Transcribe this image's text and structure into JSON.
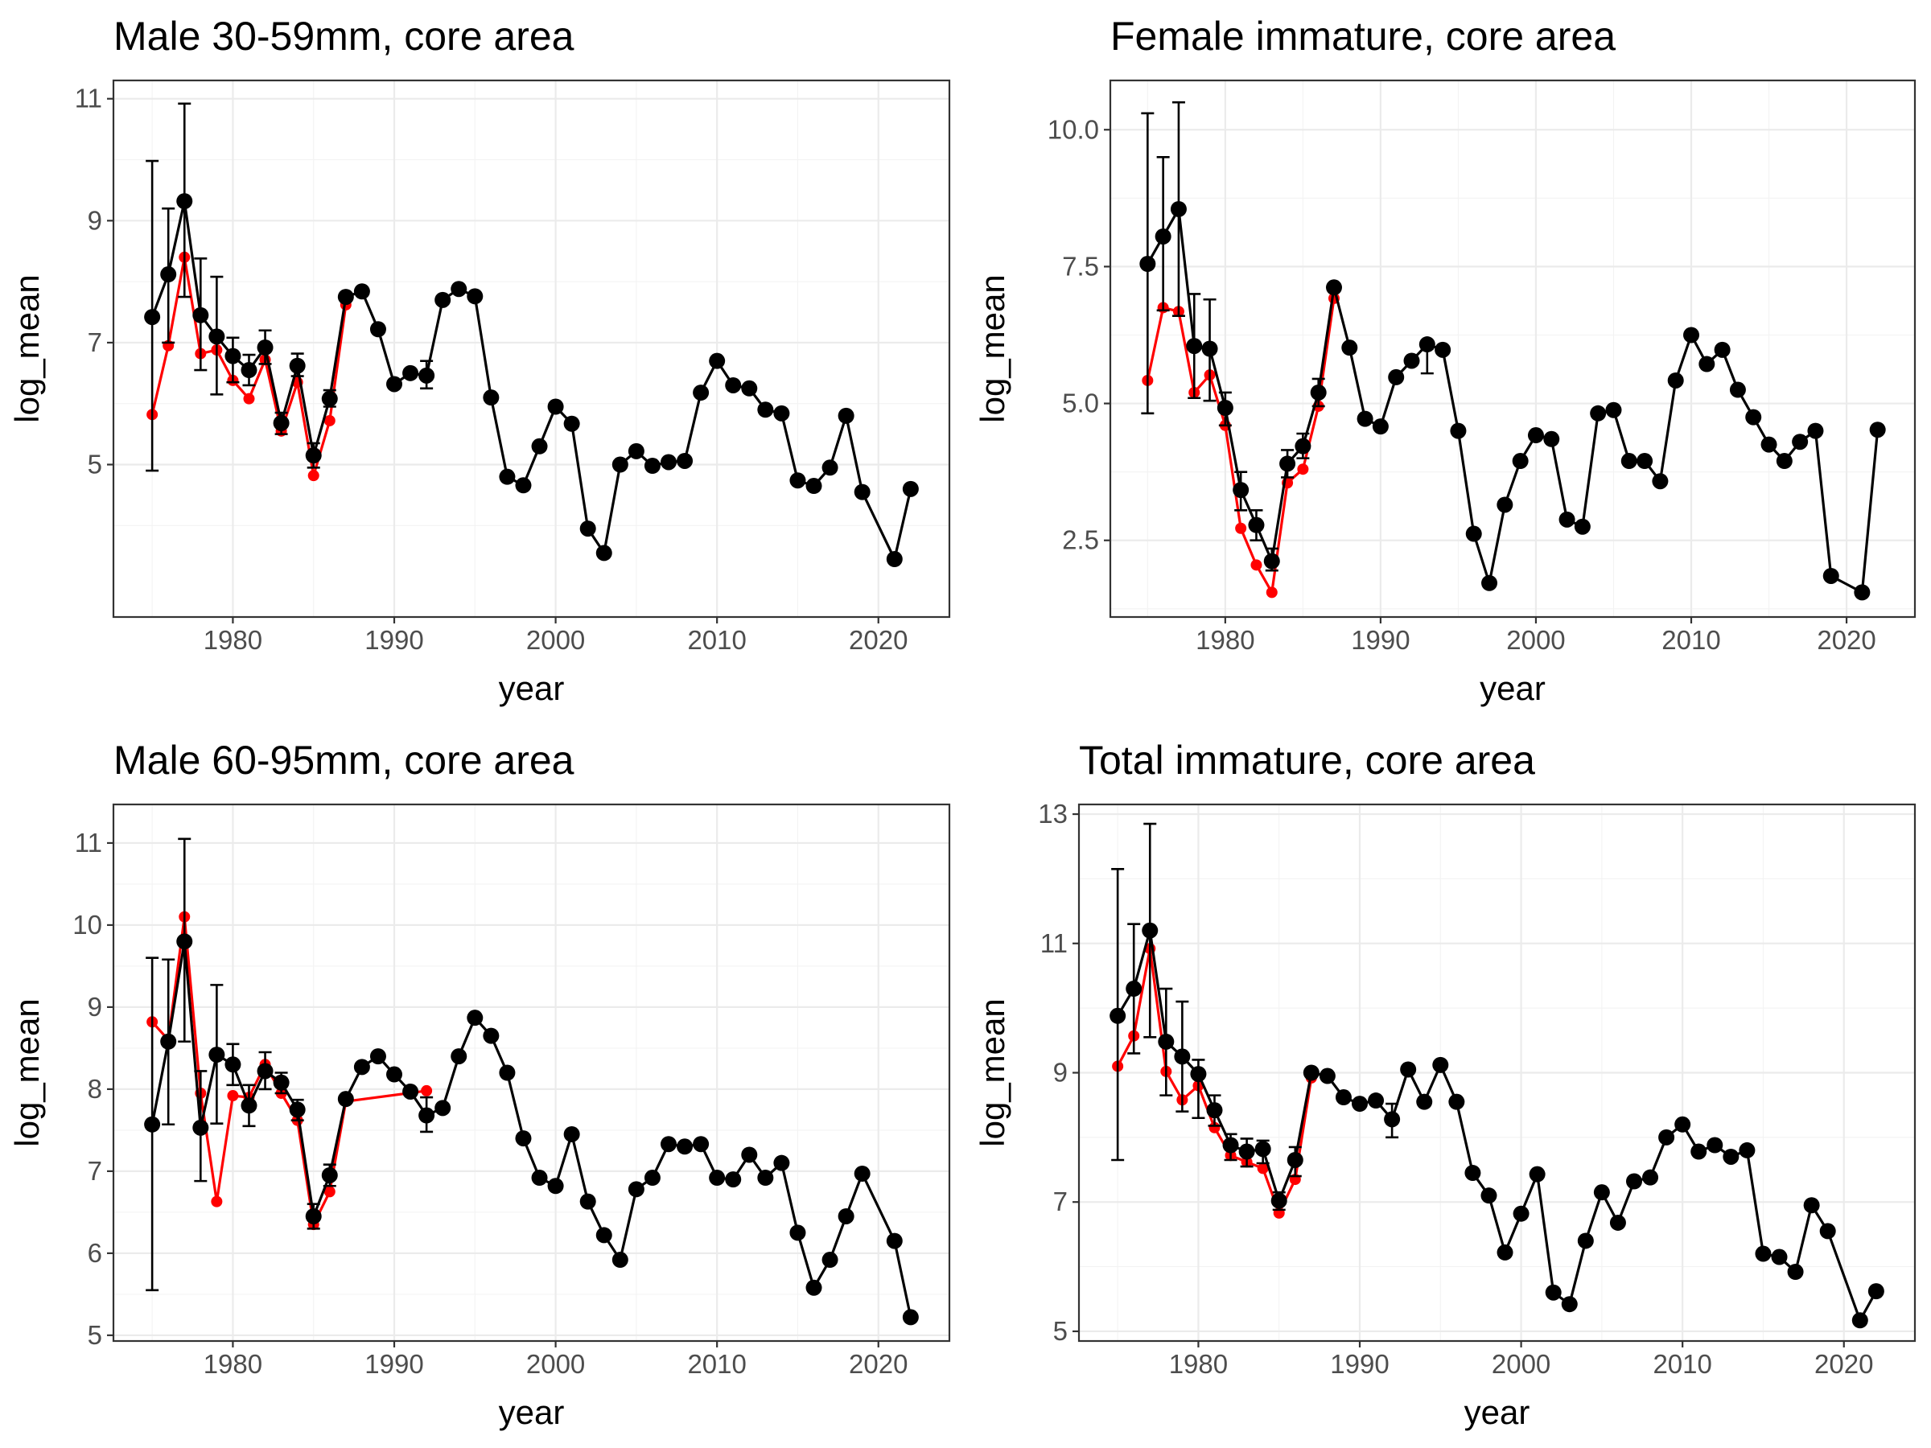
{
  "chart_data": [
    {
      "type": "line",
      "title": "Male 30-59mm, core area",
      "xlabel": "year",
      "ylabel": "log_mean",
      "xlim": [
        1972.6,
        2024.4
      ],
      "ylim": [
        2.5,
        11.3
      ],
      "xticks": [
        1980,
        1990,
        2000,
        2010,
        2020
      ],
      "yticks": [
        5,
        7,
        9,
        11
      ],
      "colors": {
        "observed": "#000000",
        "alternate": "#ff0000"
      },
      "series": [
        {
          "x": [
            1975,
            1976,
            1977,
            1978,
            1979,
            1980,
            1981,
            1982,
            1983,
            1984,
            1985,
            1986,
            1987,
            1988,
            1989,
            1990,
            1991,
            1992,
            1993,
            1994,
            1995,
            1996,
            1997,
            1998,
            1999,
            2000,
            2001,
            2002,
            2003,
            2004,
            2005,
            2006,
            2007,
            2008,
            2009,
            2010,
            2011,
            2012,
            2013,
            2014,
            2015,
            2016,
            2017,
            2018,
            2019,
            2021,
            2022
          ],
          "y": [
            7.42,
            8.12,
            9.32,
            7.45,
            7.1,
            6.78,
            6.55,
            6.92,
            5.68,
            6.62,
            5.15,
            6.08,
            7.75,
            7.84,
            7.22,
            6.32,
            6.5,
            6.46,
            7.7,
            7.88,
            7.76,
            6.1,
            4.8,
            4.66,
            5.3,
            5.95,
            5.67,
            3.95,
            3.55,
            5.0,
            5.22,
            4.98,
            5.04,
            5.06,
            6.18,
            6.7,
            6.3,
            6.25,
            5.9,
            5.84,
            4.74,
            4.65,
            4.95,
            5.8,
            4.55,
            3.45,
            4.6
          ],
          "error_x": [
            1975,
            1976,
            1977,
            1978,
            1979,
            1980,
            1981,
            1982,
            1983,
            1984,
            1985,
            1986,
            1992
          ],
          "error_low": [
            4.9,
            7.0,
            7.75,
            6.55,
            6.15,
            6.35,
            6.3,
            6.65,
            5.5,
            6.45,
            4.95,
            5.95,
            6.25
          ],
          "error_high": [
            9.98,
            9.2,
            10.92,
            8.38,
            8.08,
            7.08,
            6.8,
            7.2,
            5.85,
            6.82,
            5.35,
            6.22,
            6.7
          ]
        },
        {
          "x": [
            1975,
            1976,
            1977,
            1978,
            1979,
            1980,
            1981,
            1982,
            1983,
            1984,
            1985,
            1986,
            1987
          ],
          "y": [
            5.82,
            6.95,
            8.4,
            6.82,
            6.88,
            6.38,
            6.08,
            6.72,
            5.55,
            6.35,
            4.82,
            5.72,
            7.62
          ]
        }
      ]
    },
    {
      "type": "line",
      "title": "Female immature, core area",
      "xlabel": "year",
      "ylabel": "log_mean",
      "xlim": [
        1972.6,
        2024.4
      ],
      "ylim": [
        1.1,
        10.9
      ],
      "xticks": [
        1980,
        1990,
        2000,
        2010,
        2020
      ],
      "yticks": [
        2.5,
        5.0,
        7.5,
        10.0
      ],
      "colors": {
        "observed": "#000000",
        "alternate": "#ff0000"
      },
      "series": [
        {
          "x": [
            1975,
            1976,
            1977,
            1978,
            1979,
            1980,
            1981,
            1982,
            1983,
            1984,
            1985,
            1986,
            1987,
            1988,
            1989,
            1990,
            1991,
            1992,
            1993,
            1994,
            1995,
            1996,
            1997,
            1998,
            1999,
            2000,
            2001,
            2002,
            2003,
            2004,
            2005,
            2006,
            2007,
            2008,
            2009,
            2010,
            2011,
            2012,
            2013,
            2014,
            2015,
            2016,
            2017,
            2018,
            2019,
            2021,
            2022
          ],
          "y": [
            7.55,
            8.05,
            8.55,
            6.05,
            6.0,
            4.92,
            3.42,
            2.78,
            2.12,
            3.9,
            4.22,
            5.2,
            7.12,
            6.02,
            4.72,
            4.58,
            5.48,
            5.78,
            6.08,
            5.98,
            4.5,
            2.62,
            1.72,
            3.15,
            3.95,
            4.42,
            4.35,
            2.88,
            2.75,
            4.82,
            4.88,
            3.95,
            3.95,
            3.58,
            5.42,
            6.25,
            5.72,
            5.98,
            5.25,
            4.75,
            4.25,
            3.95,
            4.3,
            4.5,
            1.85,
            1.55,
            4.52
          ],
          "error_x": [
            1975,
            1976,
            1977,
            1978,
            1979,
            1980,
            1981,
            1982,
            1983,
            1984,
            1985,
            1986,
            1993
          ],
          "error_low": [
            4.82,
            6.7,
            6.6,
            5.1,
            5.05,
            4.6,
            3.05,
            2.5,
            1.95,
            3.65,
            4.0,
            4.95,
            5.55
          ],
          "error_high": [
            10.3,
            9.5,
            10.5,
            7.0,
            6.9,
            5.2,
            3.75,
            3.05,
            2.35,
            4.15,
            4.45,
            5.45,
            6.0
          ]
        },
        {
          "x": [
            1975,
            1976,
            1977,
            1978,
            1979,
            1980,
            1981,
            1982,
            1983,
            1984,
            1985,
            1986,
            1987
          ],
          "y": [
            5.42,
            6.75,
            6.68,
            5.2,
            5.52,
            4.6,
            2.72,
            2.05,
            1.55,
            3.55,
            3.8,
            4.95,
            6.92
          ]
        }
      ]
    },
    {
      "type": "line",
      "title": "Male 60-95mm, core area",
      "xlabel": "year",
      "ylabel": "log_mean",
      "xlim": [
        1972.6,
        2024.4
      ],
      "ylim": [
        4.93,
        11.47
      ],
      "xticks": [
        1980,
        1990,
        2000,
        2010,
        2020
      ],
      "yticks": [
        5,
        6,
        7,
        8,
        9,
        10,
        11
      ],
      "colors": {
        "observed": "#000000",
        "alternate": "#ff0000"
      },
      "series": [
        {
          "x": [
            1975,
            1976,
            1977,
            1978,
            1979,
            1980,
            1981,
            1982,
            1983,
            1984,
            1985,
            1986,
            1987,
            1988,
            1989,
            1990,
            1991,
            1992,
            1993,
            1994,
            1995,
            1996,
            1997,
            1998,
            1999,
            2000,
            2001,
            2002,
            2003,
            2004,
            2005,
            2006,
            2007,
            2008,
            2009,
            2010,
            2011,
            2012,
            2013,
            2014,
            2015,
            2016,
            2017,
            2018,
            2019,
            2021,
            2022
          ],
          "y": [
            7.57,
            8.58,
            9.8,
            7.53,
            8.42,
            8.3,
            7.8,
            8.22,
            8.08,
            7.75,
            6.45,
            6.95,
            7.88,
            8.27,
            8.4,
            8.18,
            7.97,
            7.68,
            7.77,
            8.4,
            8.87,
            8.65,
            8.2,
            7.4,
            6.92,
            6.82,
            7.45,
            6.63,
            6.22,
            5.92,
            6.78,
            6.92,
            7.33,
            7.3,
            7.33,
            6.92,
            6.9,
            7.2,
            6.92,
            7.1,
            6.25,
            5.58,
            5.92,
            6.45,
            6.97,
            6.15,
            5.22
          ],
          "error_x": [
            1975,
            1976,
            1977,
            1978,
            1979,
            1980,
            1981,
            1982,
            1983,
            1984,
            1985,
            1986,
            1992
          ],
          "error_low": [
            5.55,
            7.57,
            8.58,
            6.88,
            7.58,
            8.05,
            7.55,
            8.0,
            7.95,
            7.62,
            6.3,
            6.82,
            7.48
          ],
          "error_high": [
            9.6,
            9.58,
            11.05,
            8.22,
            9.27,
            8.55,
            8.05,
            8.45,
            8.2,
            7.87,
            6.6,
            7.08,
            7.9
          ]
        },
        {
          "x": [
            1975,
            1976,
            1977,
            1978,
            1979,
            1980,
            1981,
            1982,
            1983,
            1984,
            1985,
            1986,
            1987,
            1992
          ],
          "y": [
            8.82,
            8.6,
            10.1,
            7.95,
            6.63,
            7.92,
            7.9,
            8.3,
            7.95,
            7.62,
            6.35,
            6.75,
            7.85,
            7.98
          ]
        }
      ]
    },
    {
      "type": "line",
      "title": "Total immature, core area",
      "xlabel": "year",
      "ylabel": "log_mean",
      "xlim": [
        1972.6,
        2024.4
      ],
      "ylim": [
        4.85,
        13.15
      ],
      "xticks": [
        1980,
        1990,
        2000,
        2010,
        2020
      ],
      "yticks": [
        5,
        7,
        9,
        11,
        13
      ],
      "colors": {
        "observed": "#000000",
        "alternate": "#ff0000"
      },
      "series": [
        {
          "x": [
            1975,
            1976,
            1977,
            1978,
            1979,
            1980,
            1981,
            1982,
            1983,
            1984,
            1985,
            1986,
            1987,
            1988,
            1989,
            1990,
            1991,
            1992,
            1993,
            1994,
            1995,
            1996,
            1997,
            1998,
            1999,
            2000,
            2001,
            2002,
            2003,
            2004,
            2005,
            2006,
            2007,
            2008,
            2009,
            2010,
            2011,
            2012,
            2013,
            2014,
            2015,
            2016,
            2017,
            2018,
            2019,
            2021,
            2022
          ],
          "y": [
            9.88,
            10.3,
            11.2,
            9.48,
            9.25,
            8.98,
            8.42,
            7.88,
            7.78,
            7.82,
            7.02,
            7.65,
            9.0,
            8.95,
            8.62,
            8.52,
            8.57,
            8.28,
            9.05,
            8.55,
            9.12,
            8.55,
            7.45,
            7.1,
            6.22,
            6.82,
            7.43,
            5.6,
            5.42,
            6.4,
            7.15,
            6.68,
            7.32,
            7.38,
            8.0,
            8.2,
            7.78,
            7.88,
            7.7,
            7.8,
            6.2,
            6.15,
            5.92,
            6.95,
            6.55,
            5.17,
            5.62
          ],
          "error_x": [
            1975,
            1976,
            1977,
            1978,
            1979,
            1980,
            1981,
            1982,
            1983,
            1984,
            1985,
            1986,
            1992
          ],
          "error_low": [
            7.65,
            9.3,
            9.55,
            8.65,
            8.4,
            8.3,
            8.18,
            7.65,
            7.55,
            7.6,
            6.88,
            7.4,
            8.0
          ],
          "error_high": [
            12.15,
            11.3,
            12.85,
            10.3,
            10.1,
            9.2,
            8.65,
            8.05,
            7.98,
            7.95,
            7.15,
            7.85,
            8.52
          ]
        },
        {
          "x": [
            1975,
            1976,
            1977,
            1978,
            1979,
            1980,
            1981,
            1982,
            1983,
            1984,
            1985,
            1986,
            1987
          ],
          "y": [
            9.1,
            9.57,
            10.92,
            9.02,
            8.58,
            8.8,
            8.15,
            7.72,
            7.62,
            7.52,
            6.83,
            7.35,
            8.92
          ]
        }
      ]
    }
  ]
}
